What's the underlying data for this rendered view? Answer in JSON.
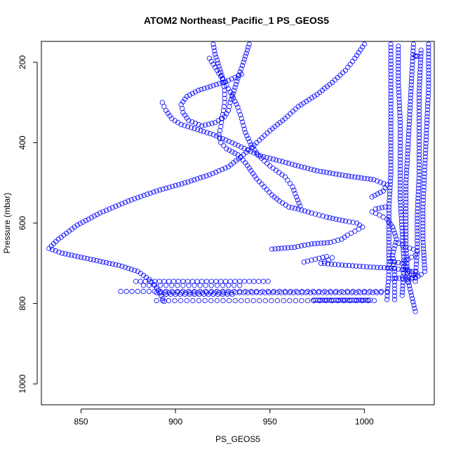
{
  "chart_data": {
    "type": "scatter",
    "title": "ATOM2 Northeast_Pacific_1 PS_GEOS5",
    "xlabel": "PS_GEOS5",
    "ylabel": "Pressure (mbar)",
    "xlim": [
      829,
      1037
    ],
    "ylim": [
      1052,
      148
    ],
    "y_reversed": true,
    "x_ticks": [
      850,
      900,
      950,
      1000
    ],
    "y_ticks": [
      200,
      400,
      600,
      800,
      1000
    ],
    "marker": "open-circle",
    "color": "#0000ff",
    "grid": false,
    "legend": "none",
    "series": [
      {
        "points": [
          [
            920,
            155
          ],
          [
            921,
            180
          ],
          [
            923,
            210
          ],
          [
            925,
            240
          ],
          [
            926,
            270
          ],
          [
            926,
            300
          ],
          [
            925,
            330
          ],
          [
            924,
            360
          ],
          [
            923,
            380
          ],
          [
            924,
            400
          ],
          [
            927,
            415
          ],
          [
            933,
            430
          ],
          [
            937,
            450
          ],
          [
            940,
            470
          ],
          [
            943,
            490
          ],
          [
            947,
            510
          ],
          [
            951,
            530
          ],
          [
            955,
            545
          ],
          [
            960,
            560
          ],
          [
            965,
            565
          ],
          [
            972,
            575
          ],
          [
            980,
            585
          ],
          [
            990,
            595
          ],
          [
            996,
            600
          ],
          [
            999,
            610
          ],
          [
            995,
            620
          ],
          [
            991,
            630
          ],
          [
            988,
            640
          ],
          [
            982,
            648
          ],
          [
            972,
            652
          ],
          [
            963,
            660
          ],
          [
            951,
            665
          ]
        ]
      },
      {
        "points": [
          [
            939,
            155
          ],
          [
            936,
            200
          ],
          [
            933,
            240
          ],
          [
            931,
            270
          ],
          [
            929,
            300
          ],
          [
            928,
            320
          ],
          [
            926,
            335
          ],
          [
            921,
            350
          ],
          [
            914,
            358
          ],
          [
            907,
            345
          ],
          [
            904,
            325
          ],
          [
            903,
            305
          ],
          [
            906,
            285
          ],
          [
            912,
            270
          ],
          [
            920,
            258
          ],
          [
            928,
            245
          ],
          [
            935,
            230
          ]
        ]
      },
      {
        "points": [
          [
            1000,
            155
          ],
          [
            995,
            190
          ],
          [
            990,
            220
          ],
          [
            983,
            250
          ],
          [
            975,
            280
          ],
          [
            965,
            310
          ],
          [
            958,
            340
          ],
          [
            950,
            370
          ],
          [
            943,
            400
          ],
          [
            936,
            430
          ],
          [
            928,
            460
          ],
          [
            918,
            480
          ],
          [
            905,
            500
          ],
          [
            890,
            520
          ],
          [
            875,
            545
          ],
          [
            860,
            575
          ],
          [
            848,
            605
          ],
          [
            838,
            640
          ],
          [
            833,
            663
          ],
          [
            840,
            675
          ],
          [
            855,
            690
          ],
          [
            870,
            705
          ],
          [
            880,
            720
          ],
          [
            886,
            740
          ],
          [
            890,
            760
          ],
          [
            894,
            795
          ]
        ]
      },
      {
        "points": [
          [
            893,
            300
          ],
          [
            895,
            320
          ],
          [
            898,
            340
          ],
          [
            903,
            355
          ],
          [
            910,
            365
          ],
          [
            920,
            380
          ],
          [
            930,
            400
          ],
          [
            938,
            418
          ],
          [
            945,
            433
          ],
          [
            955,
            445
          ],
          [
            965,
            458
          ],
          [
            975,
            470
          ],
          [
            990,
            482
          ],
          [
            1005,
            492
          ],
          [
            1012,
            505
          ],
          [
            1010,
            520
          ],
          [
            1004,
            535
          ]
        ]
      },
      {
        "points": [
          [
            918,
            190
          ],
          [
            922,
            220
          ],
          [
            926,
            250
          ],
          [
            930,
            282
          ],
          [
            933,
            312
          ],
          [
            935,
            340
          ],
          [
            937,
            375
          ],
          [
            940,
            405
          ],
          [
            944,
            432
          ],
          [
            950,
            458
          ],
          [
            958,
            485
          ],
          [
            962,
            510
          ],
          [
            964,
            535
          ],
          [
            966,
            558
          ]
        ]
      },
      {
        "points": [
          [
            1014,
            155
          ],
          [
            1014,
            230
          ],
          [
            1014,
            320
          ],
          [
            1014,
            400
          ],
          [
            1014,
            480
          ],
          [
            1013,
            560
          ],
          [
            1013,
            640
          ],
          [
            1013,
            720
          ],
          [
            1012,
            790
          ]
        ]
      },
      {
        "points": [
          [
            1026,
            155
          ],
          [
            1025,
            240
          ],
          [
            1024,
            330
          ],
          [
            1023,
            420
          ],
          [
            1022,
            500
          ],
          [
            1022,
            580
          ],
          [
            1022,
            660
          ],
          [
            1023,
            740
          ],
          [
            1027,
            820
          ]
        ]
      },
      {
        "points": [
          [
            1034,
            155
          ],
          [
            1034,
            260
          ],
          [
            1033,
            360
          ],
          [
            1032,
            460
          ],
          [
            1031,
            560
          ],
          [
            1031,
            640
          ],
          [
            1032,
            720
          ]
        ]
      },
      {
        "points": [
          [
            1018,
            160
          ],
          [
            1018,
            250
          ],
          [
            1019,
            350
          ],
          [
            1019,
            450
          ],
          [
            1019,
            540
          ],
          [
            1020,
            620
          ],
          [
            1021,
            700
          ],
          [
            1020,
            780
          ]
        ]
      },
      {
        "points": [
          [
            1030,
            170
          ],
          [
            1029,
            280
          ],
          [
            1029,
            380
          ],
          [
            1029,
            480
          ],
          [
            1028,
            580
          ],
          [
            1028,
            660
          ],
          [
            1027,
            745
          ]
        ]
      },
      {
        "points": [
          [
            1011,
            560
          ],
          [
            1006,
            565
          ],
          [
            1004,
            572
          ],
          [
            1008,
            580
          ],
          [
            1012,
            590
          ],
          [
            1015,
            610
          ],
          [
            1017,
            640
          ],
          [
            1015,
            680
          ],
          [
            1016,
            720
          ],
          [
            1016,
            790
          ]
        ]
      },
      {
        "points": [
          [
            968,
            697
          ],
          [
            974,
            690
          ],
          [
            980,
            683
          ],
          [
            983,
            686
          ],
          [
            981,
            692
          ],
          [
            977,
            700
          ],
          [
            990,
            705
          ],
          [
            1005,
            710
          ],
          [
            1014,
            712
          ],
          [
            1020,
            716
          ],
          [
            1027,
            722
          ],
          [
            1030,
            728
          ],
          [
            1027,
            735
          ],
          [
            1015,
            738
          ]
        ]
      },
      {
        "points": [
          [
            1014,
            695
          ],
          [
            1020,
            700
          ],
          [
            1023,
            690
          ],
          [
            1027,
            680
          ],
          [
            1028,
            670
          ],
          [
            1026,
            665
          ],
          [
            1022,
            660
          ],
          [
            1018,
            650
          ]
        ]
      },
      {
        "points": [
          [
            1027,
            185
          ],
          [
            1028,
            185
          ],
          [
            1027,
            184
          ]
        ]
      },
      {
        "points": [
          [
            1022,
            710
          ],
          [
            1024,
            720
          ],
          [
            1026,
            730
          ],
          [
            1025,
            738
          ],
          [
            1023,
            745
          ]
        ]
      }
    ],
    "rows": [
      {
        "y": 745,
        "x_min": 879,
        "x_max": 951,
        "step": 2.5
      },
      {
        "y": 755,
        "x_min": 883,
        "x_max": 935,
        "step": 3
      },
      {
        "y": 770,
        "x_min": 871,
        "x_max": 1014,
        "step": 3
      },
      {
        "y": 773,
        "x_min": 890,
        "x_max": 1010,
        "step": 2.2
      },
      {
        "y": 777,
        "x_min": 895,
        "x_max": 930,
        "step": 2.5
      },
      {
        "y": 793,
        "x_min": 890,
        "x_max": 1006,
        "step": 3.2
      },
      {
        "y": 792,
        "x_min": 973,
        "x_max": 1004,
        "step": 1.2
      }
    ]
  }
}
